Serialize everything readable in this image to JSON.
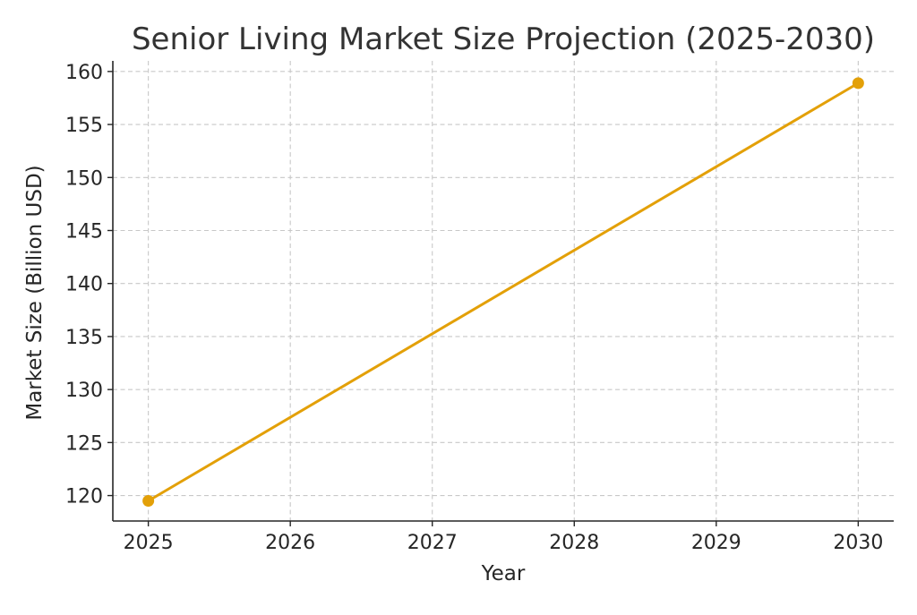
{
  "chart_data": {
    "type": "line",
    "title": "Senior Living Market Size Projection (2025-2030)",
    "xlabel": "Year",
    "ylabel": "Market Size (Billion USD)",
    "x": [
      2025,
      2030
    ],
    "y": [
      119.5,
      158.9
    ],
    "xticks": [
      "2025",
      "2026",
      "2027",
      "2028",
      "2029",
      "2030"
    ],
    "yticks": [
      "120",
      "125",
      "130",
      "135",
      "140",
      "145",
      "150",
      "155",
      "160"
    ],
    "xlim": [
      2024.75,
      2030.25
    ],
    "ylim": [
      117.6,
      161
    ],
    "grid": true,
    "line_color": "#e3a008",
    "series": [
      {
        "x": [
          2025,
          2030
        ],
        "y": [
          119.5,
          158.9
        ]
      }
    ]
  }
}
